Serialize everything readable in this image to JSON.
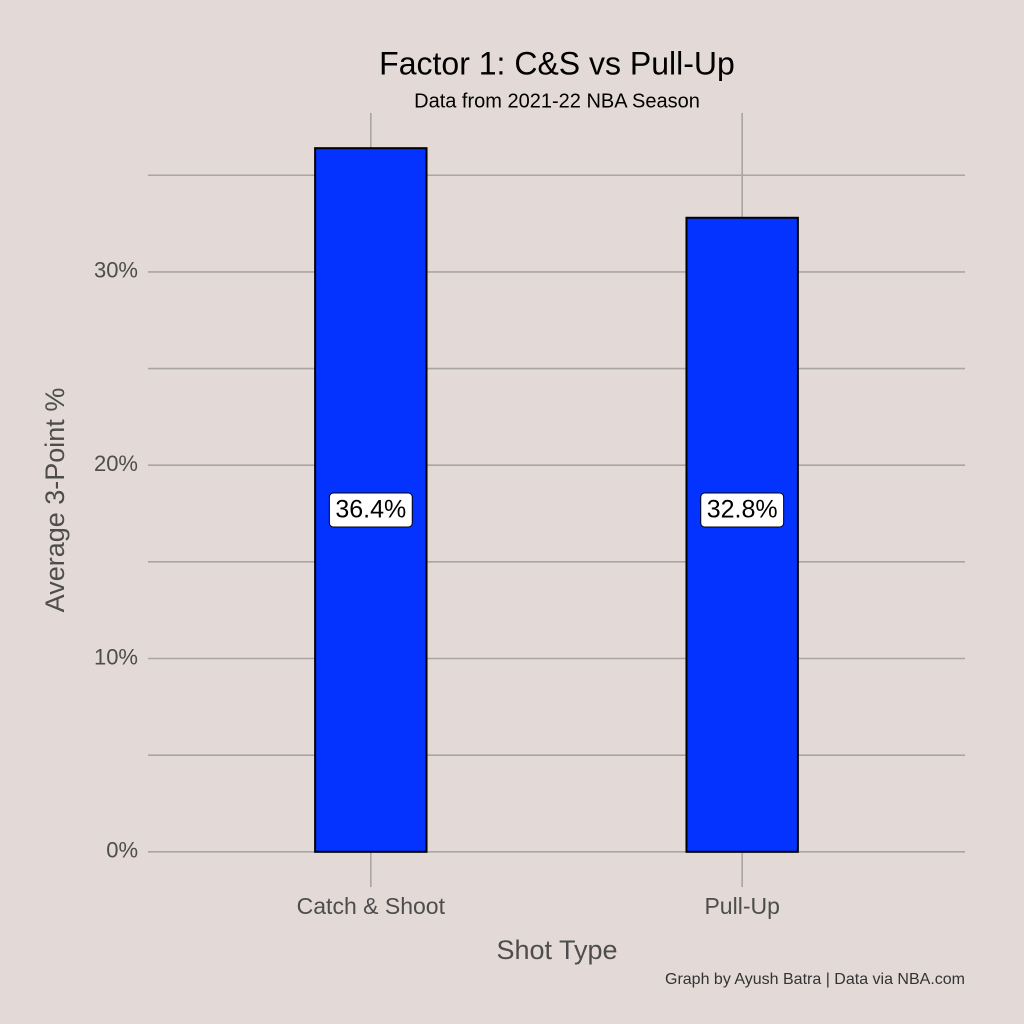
{
  "chart_data": {
    "type": "bar",
    "title": "Factor 1: C&S vs Pull-Up",
    "subtitle": "Data from 2021-22 NBA Season",
    "x_label": "Shot Type",
    "y_label": "Average 3-Point %",
    "caption": "Graph by Ayush Batra | Data via NBA.com",
    "categories": [
      "Catch & Shoot",
      "Pull-Up"
    ],
    "values": [
      36.4,
      32.8
    ],
    "value_labels": [
      "36.4%",
      "32.8%"
    ],
    "color": "#0433ff",
    "ylim": [
      -1.82,
      38.22
    ],
    "yticks": [
      {
        "value": 0,
        "label": "0%"
      },
      {
        "value": 10,
        "label": "10%"
      },
      {
        "value": 20,
        "label": "20%"
      },
      {
        "value": 30,
        "label": "30%"
      }
    ],
    "minor_yticks": [
      5,
      15,
      25,
      35
    ],
    "grid": true
  }
}
